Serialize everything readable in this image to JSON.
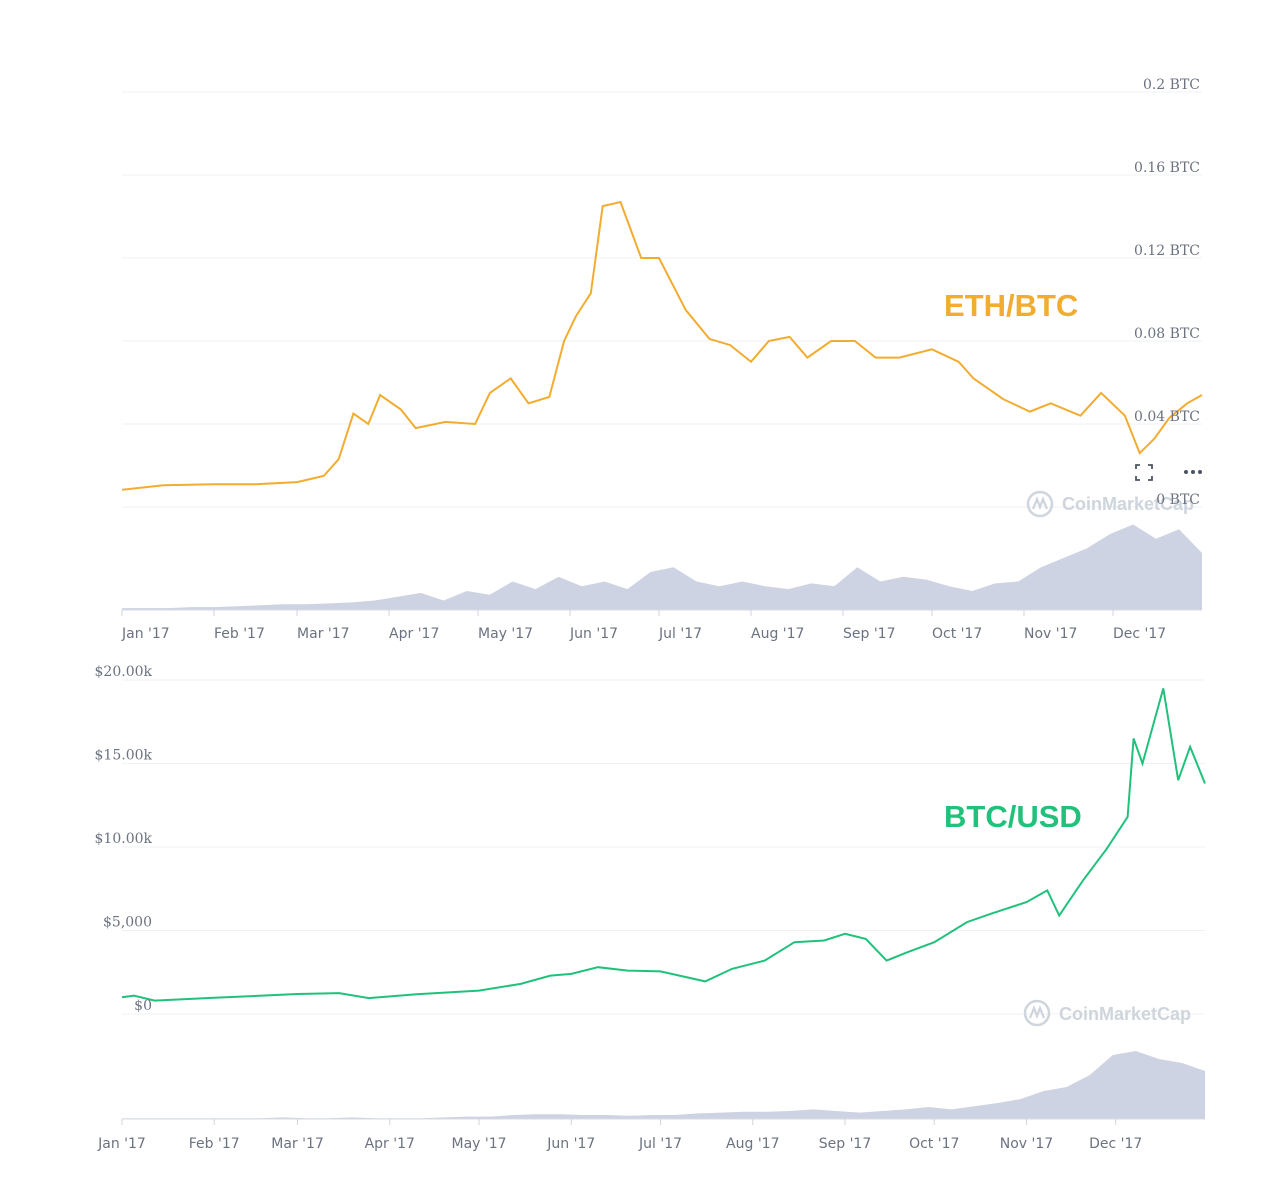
{
  "colors": {
    "eth_btc_line": "#f2ac2f",
    "btc_usd_line": "#21c17c",
    "volume": "#cdd3e2",
    "grid": "#eef0f3",
    "axis_text": "#6b7280"
  },
  "watermark": "CoinMarketCap",
  "toolbar": {
    "fullscreen_icon": "fullscreen-icon",
    "more_icon": "more-dots-icon"
  },
  "chart_data": [
    {
      "type": "line",
      "series_label": "ETH/BTC",
      "x_ticks": [
        "Jan '17",
        "Feb '17",
        "Mar '17",
        "Apr '17",
        "May '17",
        "Jun '17",
        "Jul '17",
        "Aug '17",
        "Sep '17",
        "Oct '17",
        "Nov '17",
        "Dec '17"
      ],
      "y_ticks": [
        "0 BTC",
        "0.04 BTC",
        "0.08 BTC",
        "0.12 BTC",
        "0.16 BTC",
        "0.2 BTC"
      ],
      "ylim": [
        0,
        0.2
      ],
      "y_axis_side": "right",
      "xlim": [
        "2017-01-01",
        "2017-12-31"
      ],
      "grid": true,
      "series": [
        {
          "points": [
            [
              "2017-01-01",
              0.0083
            ],
            [
              "2017-01-15",
              0.0105
            ],
            [
              "2017-02-01",
              0.011
            ],
            [
              "2017-02-15",
              0.011
            ],
            [
              "2017-03-01",
              0.012
            ],
            [
              "2017-03-10",
              0.015
            ],
            [
              "2017-03-15",
              0.023
            ],
            [
              "2017-03-20",
              0.045
            ],
            [
              "2017-03-25",
              0.04
            ],
            [
              "2017-03-29",
              0.054
            ],
            [
              "2017-04-05",
              0.047
            ],
            [
              "2017-04-10",
              0.038
            ],
            [
              "2017-04-20",
              0.041
            ],
            [
              "2017-04-30",
              0.04
            ],
            [
              "2017-05-05",
              0.055
            ],
            [
              "2017-05-12",
              0.062
            ],
            [
              "2017-05-18",
              0.05
            ],
            [
              "2017-05-25",
              0.053
            ],
            [
              "2017-05-30",
              0.08
            ],
            [
              "2017-06-03",
              0.092
            ],
            [
              "2017-06-08",
              0.103
            ],
            [
              "2017-06-12",
              0.145
            ],
            [
              "2017-06-18",
              0.147
            ],
            [
              "2017-06-25",
              0.12
            ],
            [
              "2017-07-01",
              0.12
            ],
            [
              "2017-07-10",
              0.095
            ],
            [
              "2017-07-18",
              0.081
            ],
            [
              "2017-07-25",
              0.078
            ],
            [
              "2017-08-01",
              0.07
            ],
            [
              "2017-08-07",
              0.08
            ],
            [
              "2017-08-14",
              0.082
            ],
            [
              "2017-08-20",
              0.072
            ],
            [
              "2017-08-28",
              0.08
            ],
            [
              "2017-09-05",
              0.08
            ],
            [
              "2017-09-12",
              0.072
            ],
            [
              "2017-09-20",
              0.072
            ],
            [
              "2017-10-01",
              0.076
            ],
            [
              "2017-10-10",
              0.07
            ],
            [
              "2017-10-15",
              0.062
            ],
            [
              "2017-10-25",
              0.052
            ],
            [
              "2017-11-03",
              0.046
            ],
            [
              "2017-11-10",
              0.05
            ],
            [
              "2017-11-20",
              0.044
            ],
            [
              "2017-11-27",
              0.055
            ],
            [
              "2017-12-05",
              0.044
            ],
            [
              "2017-12-10",
              0.026
            ],
            [
              "2017-12-15",
              0.033
            ],
            [
              "2017-12-20",
              0.043
            ],
            [
              "2017-12-26",
              0.05
            ],
            [
              "2017-12-31",
              0.054
            ]
          ]
        }
      ],
      "volume": [
        0.02,
        0.02,
        0.02,
        0.03,
        0.03,
        0.04,
        0.05,
        0.06,
        0.06,
        0.07,
        0.08,
        0.1,
        0.14,
        0.18,
        0.1,
        0.2,
        0.16,
        0.3,
        0.22,
        0.35,
        0.25,
        0.3,
        0.22,
        0.4,
        0.45,
        0.3,
        0.25,
        0.3,
        0.25,
        0.22,
        0.28,
        0.25,
        0.45,
        0.3,
        0.35,
        0.32,
        0.25,
        0.2,
        0.28,
        0.3,
        0.45,
        0.55,
        0.65,
        0.8,
        0.9,
        0.75,
        0.85,
        0.6
      ]
    },
    {
      "type": "line",
      "series_label": "BTC/USD",
      "x_ticks": [
        "Jan '17",
        "Feb '17",
        "Mar '17",
        "Apr '17",
        "May '17",
        "Jun '17",
        "Jul '17",
        "Aug '17",
        "Sep '17",
        "Oct '17",
        "Nov '17",
        "Dec '17"
      ],
      "y_ticks": [
        "$0",
        "$5,000",
        "$10.00k",
        "$15.00k",
        "$20.00k"
      ],
      "ylim": [
        0,
        20000
      ],
      "y_axis_side": "left",
      "xlim": [
        "2017-01-01",
        "2017-12-31"
      ],
      "grid": true,
      "series": [
        {
          "points": [
            [
              "2017-01-01",
              1000
            ],
            [
              "2017-01-05",
              1100
            ],
            [
              "2017-01-12",
              800
            ],
            [
              "2017-02-01",
              970
            ],
            [
              "2017-03-01",
              1200
            ],
            [
              "2017-03-15",
              1250
            ],
            [
              "2017-03-25",
              950
            ],
            [
              "2017-04-10",
              1180
            ],
            [
              "2017-05-01",
              1400
            ],
            [
              "2017-05-15",
              1800
            ],
            [
              "2017-05-25",
              2300
            ],
            [
              "2017-06-01",
              2400
            ],
            [
              "2017-06-10",
              2800
            ],
            [
              "2017-06-20",
              2600
            ],
            [
              "2017-07-01",
              2550
            ],
            [
              "2017-07-16",
              1950
            ],
            [
              "2017-07-25",
              2700
            ],
            [
              "2017-08-05",
              3200
            ],
            [
              "2017-08-15",
              4300
            ],
            [
              "2017-08-25",
              4400
            ],
            [
              "2017-09-01",
              4800
            ],
            [
              "2017-09-08",
              4500
            ],
            [
              "2017-09-15",
              3200
            ],
            [
              "2017-09-22",
              3700
            ],
            [
              "2017-10-01",
              4300
            ],
            [
              "2017-10-12",
              5500
            ],
            [
              "2017-10-20",
              6000
            ],
            [
              "2017-11-01",
              6700
            ],
            [
              "2017-11-08",
              7400
            ],
            [
              "2017-11-12",
              5900
            ],
            [
              "2017-11-20",
              8000
            ],
            [
              "2017-11-28",
              9900
            ],
            [
              "2017-12-05",
              11800
            ],
            [
              "2017-12-07",
              16500
            ],
            [
              "2017-12-10",
              15000
            ],
            [
              "2017-12-17",
              19500
            ],
            [
              "2017-12-22",
              14000
            ],
            [
              "2017-12-26",
              16000
            ],
            [
              "2017-12-31",
              13800
            ]
          ]
        }
      ],
      "volume": [
        0.01,
        0.01,
        0.01,
        0.01,
        0.01,
        0.01,
        0.01,
        0.02,
        0.01,
        0.01,
        0.02,
        0.01,
        0.01,
        0.01,
        0.02,
        0.03,
        0.03,
        0.05,
        0.06,
        0.06,
        0.05,
        0.05,
        0.04,
        0.05,
        0.05,
        0.07,
        0.08,
        0.09,
        0.09,
        0.1,
        0.12,
        0.1,
        0.08,
        0.1,
        0.12,
        0.15,
        0.12,
        0.16,
        0.2,
        0.25,
        0.35,
        0.4,
        0.55,
        0.8,
        0.85,
        0.75,
        0.7,
        0.6
      ]
    }
  ]
}
